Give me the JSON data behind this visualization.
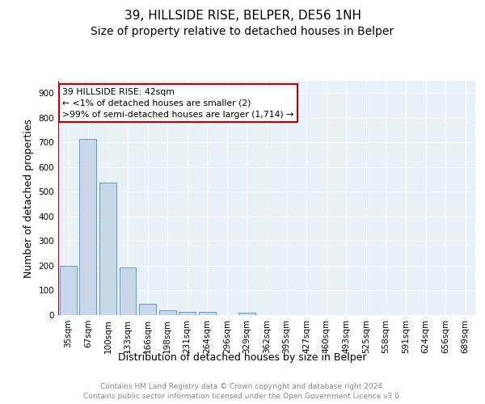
{
  "title": "39, HILLSIDE RISE, BELPER, DE56 1NH",
  "subtitle": "Size of property relative to detached houses in Belper",
  "xlabel": "Distribution of detached houses by size in Belper",
  "ylabel": "Number of detached properties",
  "footnote": "Contains HM Land Registry data © Crown copyright and database right 2024.\nContains public sector information licensed under the Open Government Licence v3.0.",
  "categories": [
    "35sqm",
    "67sqm",
    "100sqm",
    "133sqm",
    "166sqm",
    "198sqm",
    "231sqm",
    "264sqm",
    "296sqm",
    "329sqm",
    "362sqm",
    "395sqm",
    "427sqm",
    "460sqm",
    "493sqm",
    "525sqm",
    "558sqm",
    "591sqm",
    "624sqm",
    "656sqm",
    "689sqm"
  ],
  "values": [
    200,
    715,
    537,
    192,
    46,
    20,
    14,
    12,
    0,
    10,
    0,
    0,
    0,
    0,
    0,
    0,
    0,
    0,
    0,
    0,
    0
  ],
  "bar_color": "#c8d8e8",
  "bar_edge_color": "#5b9bd5",
  "vline_color": "#c00000",
  "annotation_text": "39 HILLSIDE RISE: 42sqm\n← <1% of detached houses are smaller (2)\n>99% of semi-detached houses are larger (1,714) →",
  "annotation_box_color": "#ffffff",
  "annotation_box_edge": "#c00000",
  "ylim": [
    0,
    950
  ],
  "yticks": [
    0,
    100,
    200,
    300,
    400,
    500,
    600,
    700,
    800,
    900
  ],
  "plot_bg_color": "#e8f0f8",
  "title_fontsize": 11,
  "subtitle_fontsize": 10,
  "axis_label_fontsize": 9,
  "tick_fontsize": 7.5,
  "footnote_fontsize": 6.5,
  "footnote_color": "#888888"
}
